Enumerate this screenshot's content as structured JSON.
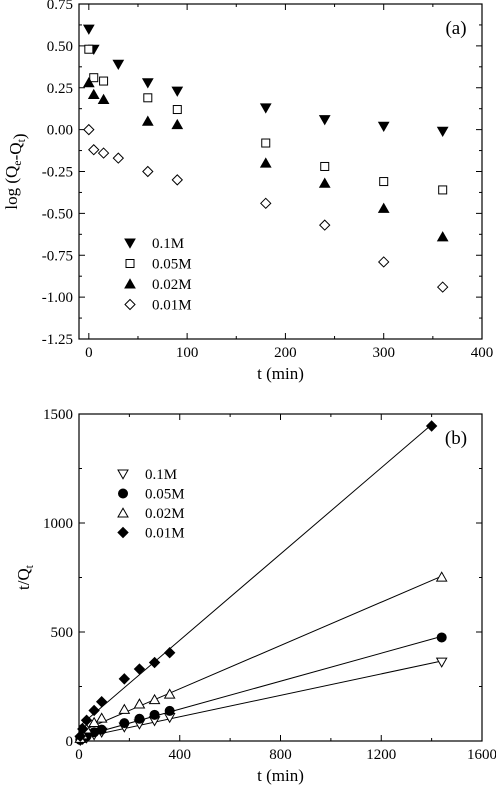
{
  "chart_data": [
    {
      "type": "scatter",
      "panel_label": "(a)",
      "xlabel": "t (min)",
      "ylabel": {
        "main": "log (Q",
        "sub1": "e",
        "mid": "-Q",
        "sub2": "t",
        "end": ")"
      },
      "xlim": [
        -10,
        400
      ],
      "ylim": [
        -1.25,
        0.75
      ],
      "xticks": [
        0,
        100,
        200,
        300,
        400
      ],
      "yticks": [
        -1.25,
        -1.0,
        -0.75,
        -0.5,
        -0.25,
        0.0,
        0.25,
        0.5,
        0.75
      ],
      "ytick_labels": [
        "-1.25",
        "-1.00",
        "-0.75",
        "-0.50",
        "-0.25",
        "0.00",
        "0.25",
        "0.50",
        "0.75"
      ],
      "legend_position": "bottom-left",
      "series": [
        {
          "name": "0.1M",
          "marker": "triangle-down-filled",
          "x": [
            0,
            5,
            30,
            60,
            90,
            180,
            240,
            300,
            360
          ],
          "y": [
            0.6,
            0.48,
            0.39,
            0.28,
            0.23,
            0.13,
            0.06,
            0.02,
            -0.01
          ]
        },
        {
          "name": "0.05M",
          "marker": "square-open",
          "x": [
            0,
            5,
            15,
            60,
            90,
            180,
            240,
            300,
            360
          ],
          "y": [
            0.48,
            0.31,
            0.29,
            0.19,
            0.12,
            -0.08,
            -0.22,
            -0.31,
            -0.36
          ]
        },
        {
          "name": "0.02M",
          "marker": "triangle-up-filled",
          "x": [
            0,
            5,
            15,
            60,
            90,
            180,
            240,
            300,
            360
          ],
          "y": [
            0.28,
            0.21,
            0.18,
            0.05,
            0.03,
            -0.2,
            -0.32,
            -0.47,
            -0.64
          ]
        },
        {
          "name": "0.01M",
          "marker": "diamond-open",
          "x": [
            0,
            5,
            15,
            30,
            60,
            90,
            180,
            240,
            300,
            360
          ],
          "y": [
            0.0,
            -0.12,
            -0.14,
            -0.17,
            -0.25,
            -0.3,
            -0.44,
            -0.57,
            -0.79,
            -0.94
          ]
        }
      ]
    },
    {
      "type": "scatter",
      "panel_label": "(b)",
      "xlabel": "t (min)",
      "ylabel": {
        "main": "t/Q",
        "sub1": "t"
      },
      "xlim": [
        0,
        1600
      ],
      "ylim": [
        0,
        1500
      ],
      "xticks": [
        0,
        400,
        800,
        1200,
        1600
      ],
      "yticks": [
        0,
        500,
        1000,
        1500
      ],
      "ytick_labels": [
        "0",
        "500",
        "1000",
        "1500"
      ],
      "legend_position": "top-left",
      "fit_lines": true,
      "series": [
        {
          "name": "0.1M",
          "marker": "triangle-down-open",
          "x": [
            5,
            15,
            30,
            60,
            90,
            180,
            240,
            300,
            360,
            1440
          ],
          "y": [
            3,
            8,
            14,
            28,
            40,
            64,
            78,
            93,
            108,
            362
          ]
        },
        {
          "name": "0.05M",
          "marker": "circle-filled",
          "x": [
            5,
            15,
            30,
            60,
            90,
            180,
            240,
            300,
            360,
            1440
          ],
          "y": [
            5,
            13,
            22,
            40,
            52,
            82,
            102,
            120,
            138,
            475
          ]
        },
        {
          "name": "0.02M",
          "marker": "triangle-up-open",
          "x": [
            5,
            15,
            30,
            60,
            90,
            180,
            240,
            300,
            360,
            1440
          ],
          "y": [
            12,
            28,
            55,
            85,
            105,
            145,
            170,
            190,
            215,
            752
          ]
        },
        {
          "name": "0.01M",
          "marker": "diamond-filled",
          "x": [
            5,
            15,
            30,
            60,
            90,
            180,
            240,
            300,
            360,
            1400
          ],
          "y": [
            22,
            55,
            95,
            140,
            180,
            285,
            330,
            360,
            405,
            1445
          ]
        }
      ]
    }
  ]
}
